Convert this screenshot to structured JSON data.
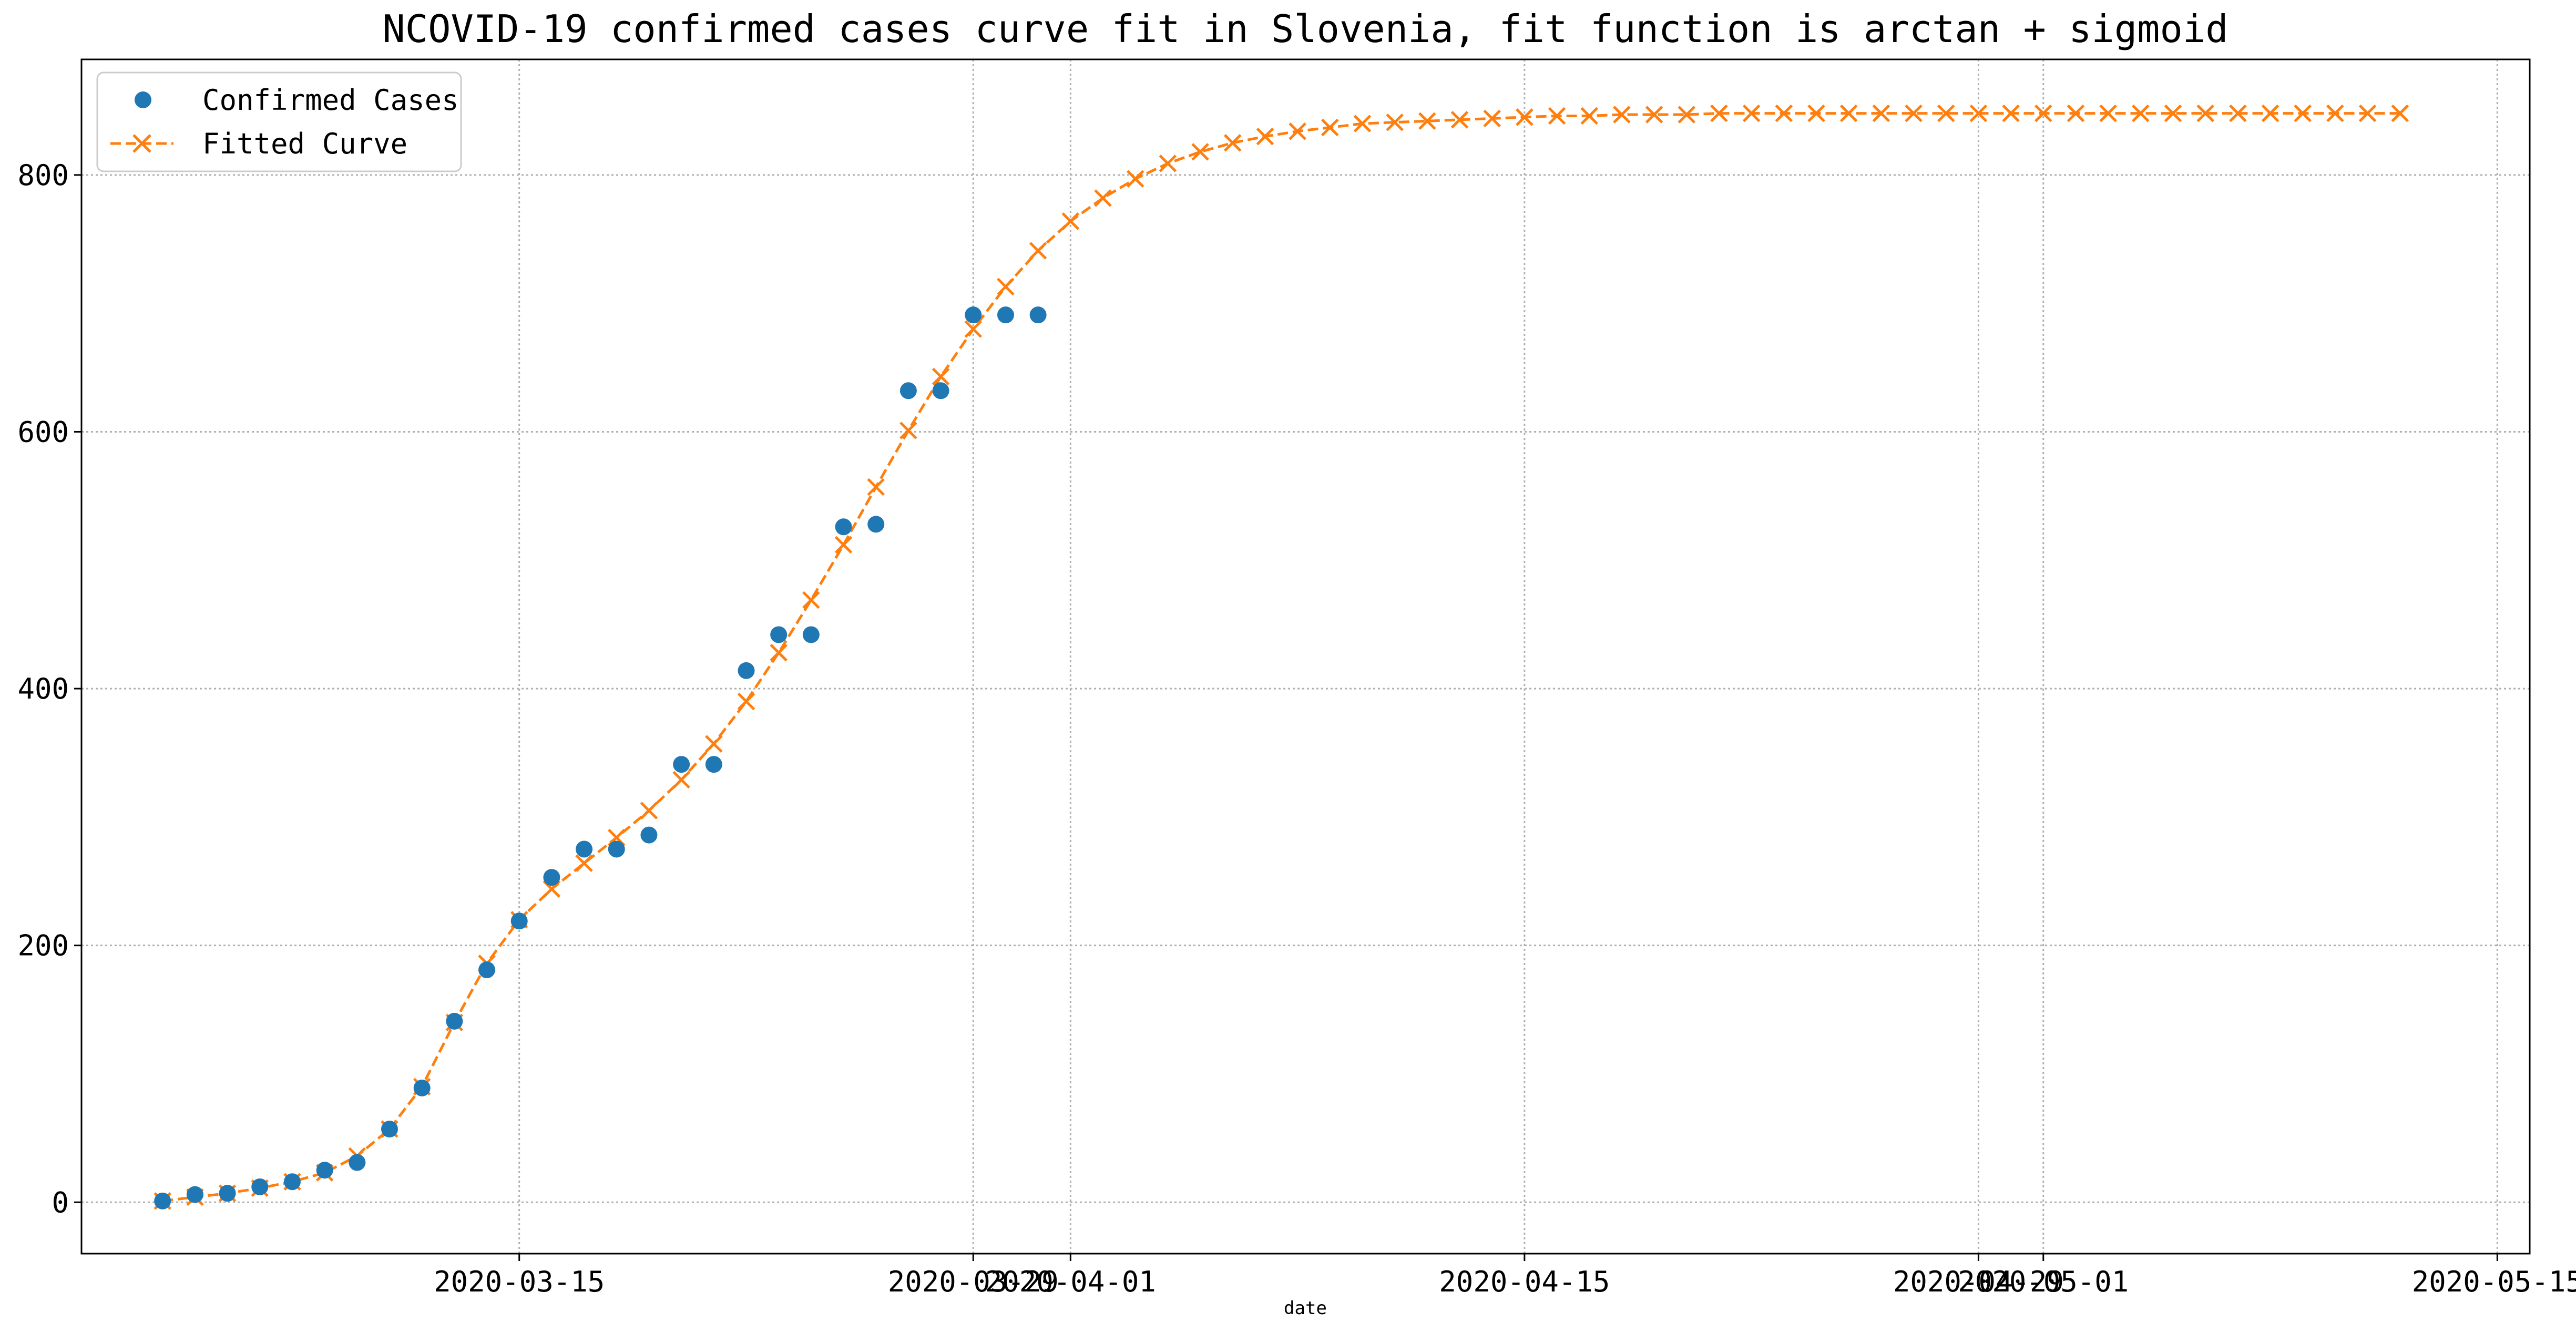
{
  "chart_data": {
    "type": "line",
    "title": "NCOVID-19 confirmed cases curve fit in Slovenia, fit function is arctan + sigmoid",
    "xlabel": "date",
    "ylabel": "",
    "x_axis": {
      "type": "date",
      "range": [
        "2020-03-01T12:00",
        "2020-05-16"
      ],
      "ticks": [
        {
          "date": "2020-03-15",
          "label": "2020-03-15"
        },
        {
          "date": "2020-03-29",
          "label": "2020-03-29"
        },
        {
          "date": "2020-04-01",
          "label": "2020-04-01"
        },
        {
          "date": "2020-04-15",
          "label": "2020-04-15"
        },
        {
          "date": "2020-04-29",
          "label": "2020-04-29"
        },
        {
          "date": "2020-05-01",
          "label": "2020-05-01"
        },
        {
          "date": "2020-05-15",
          "label": "2020-05-15"
        }
      ]
    },
    "y_axis": {
      "range": [
        -40,
        890
      ],
      "ticks": [
        0,
        200,
        400,
        600,
        800
      ]
    },
    "grid": true,
    "legend": "top-left",
    "series": [
      {
        "name": "Confirmed Cases",
        "style": "markers",
        "marker": "circle",
        "color": "#1f77b4",
        "x": [
          "2020-03-04",
          "2020-03-05",
          "2020-03-06",
          "2020-03-07",
          "2020-03-08",
          "2020-03-09",
          "2020-03-10",
          "2020-03-11",
          "2020-03-12",
          "2020-03-13",
          "2020-03-14",
          "2020-03-15",
          "2020-03-16",
          "2020-03-17",
          "2020-03-18",
          "2020-03-19",
          "2020-03-20",
          "2020-03-21",
          "2020-03-22",
          "2020-03-23",
          "2020-03-24",
          "2020-03-25",
          "2020-03-26",
          "2020-03-27",
          "2020-03-28",
          "2020-03-29",
          "2020-03-30",
          "2020-03-31"
        ],
        "values": [
          1,
          6,
          7,
          12,
          16,
          25,
          31,
          57,
          89,
          141,
          181,
          219,
          253,
          275,
          275,
          286,
          341,
          341,
          414,
          442,
          442,
          526,
          528,
          632,
          632,
          691,
          691,
          691
        ]
      },
      {
        "name": "Fitted Curve",
        "style": "dashed-line-x-markers",
        "marker": "x",
        "color": "#ff7f0e",
        "x_start": "2020-03-04",
        "x_step_days": 1,
        "values": [
          1,
          4,
          7,
          11,
          16,
          23,
          36,
          57,
          90,
          140,
          186,
          220,
          244,
          264,
          284,
          305,
          329,
          357,
          390,
          428,
          469,
          512,
          557,
          601,
          643,
          680,
          713,
          741,
          764,
          782,
          797,
          809,
          818,
          825,
          830,
          834,
          837,
          840,
          841,
          842,
          843,
          844,
          845,
          846,
          846,
          847,
          847,
          847,
          848,
          848,
          848,
          848,
          848,
          848,
          848,
          848,
          848,
          848,
          848,
          848,
          848,
          848,
          848,
          848,
          848,
          848,
          848,
          848,
          848,
          848
        ]
      }
    ]
  }
}
